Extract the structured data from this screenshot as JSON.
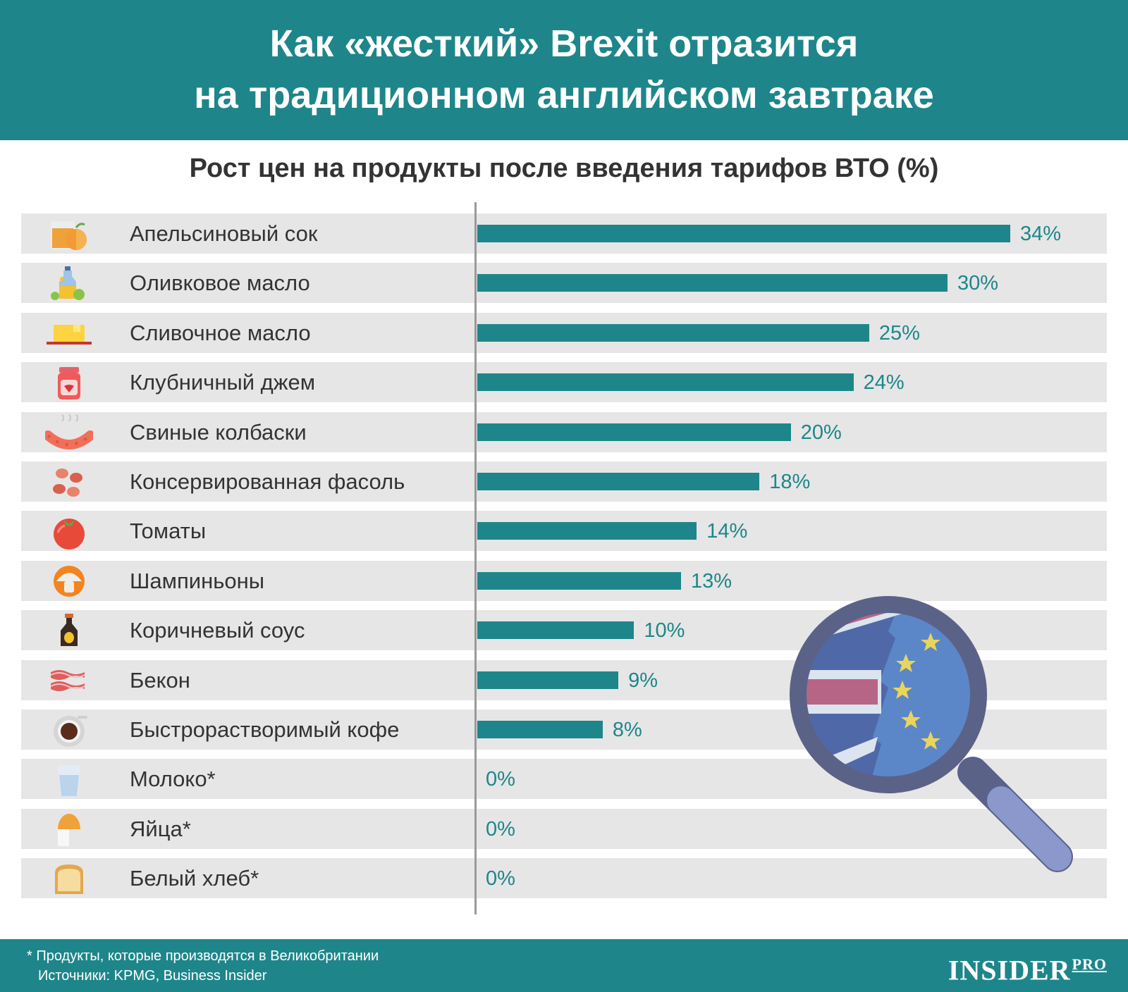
{
  "header": {
    "line1": "Как «жесткий» Brexit отразится",
    "line2": "на традиционном английском завтраке"
  },
  "subtitle": "Рост цен на продукты после введения тарифов ВТО (%)",
  "chart_data": {
    "type": "bar",
    "orientation": "horizontal",
    "title": "Рост цен на продукты после введения тарифов ВТО (%)",
    "xlim": [
      0,
      34
    ],
    "categories": [
      "Апельсиновый сок",
      "Оливковое масло",
      "Сливочное масло",
      "Клубничный джем",
      "Свиные колбаски",
      "Консервированная фасоль",
      "Томаты",
      "Шампиньоны",
      "Коричневый соус",
      "Бекон",
      "Быстрорастворимый кофе",
      "Молоко*",
      "Яйца*",
      "Белый хлеб*"
    ],
    "values": [
      34,
      30,
      25,
      24,
      20,
      18,
      14,
      13,
      10,
      9,
      8,
      0,
      0,
      0
    ],
    "value_labels": [
      "34%",
      "30%",
      "25%",
      "24%",
      "20%",
      "18%",
      "14%",
      "13%",
      "10%",
      "9%",
      "8%",
      "0%",
      "0%",
      "0%"
    ],
    "icons": [
      "orange-juice-icon",
      "olive-oil-icon",
      "butter-icon",
      "strawberry-jam-icon",
      "sausage-icon",
      "baked-beans-icon",
      "tomato-icon",
      "mushroom-icon",
      "brown-sauce-icon",
      "bacon-icon",
      "coffee-icon",
      "milk-icon",
      "egg-icon",
      "bread-icon"
    ],
    "grid": false,
    "colors": {
      "bar": "#1e868a",
      "row": "#e6e6e6",
      "value": "#1e868a"
    }
  },
  "decoration": {
    "magnifier": "magnifier-uk-eu-flag-icon"
  },
  "footer": {
    "note": "* Продукты, которые производятся в Великобритании",
    "sources": "Источники: KPMG, Business Insider",
    "brand_main": "INSIDER",
    "brand_sub": "PRO"
  }
}
